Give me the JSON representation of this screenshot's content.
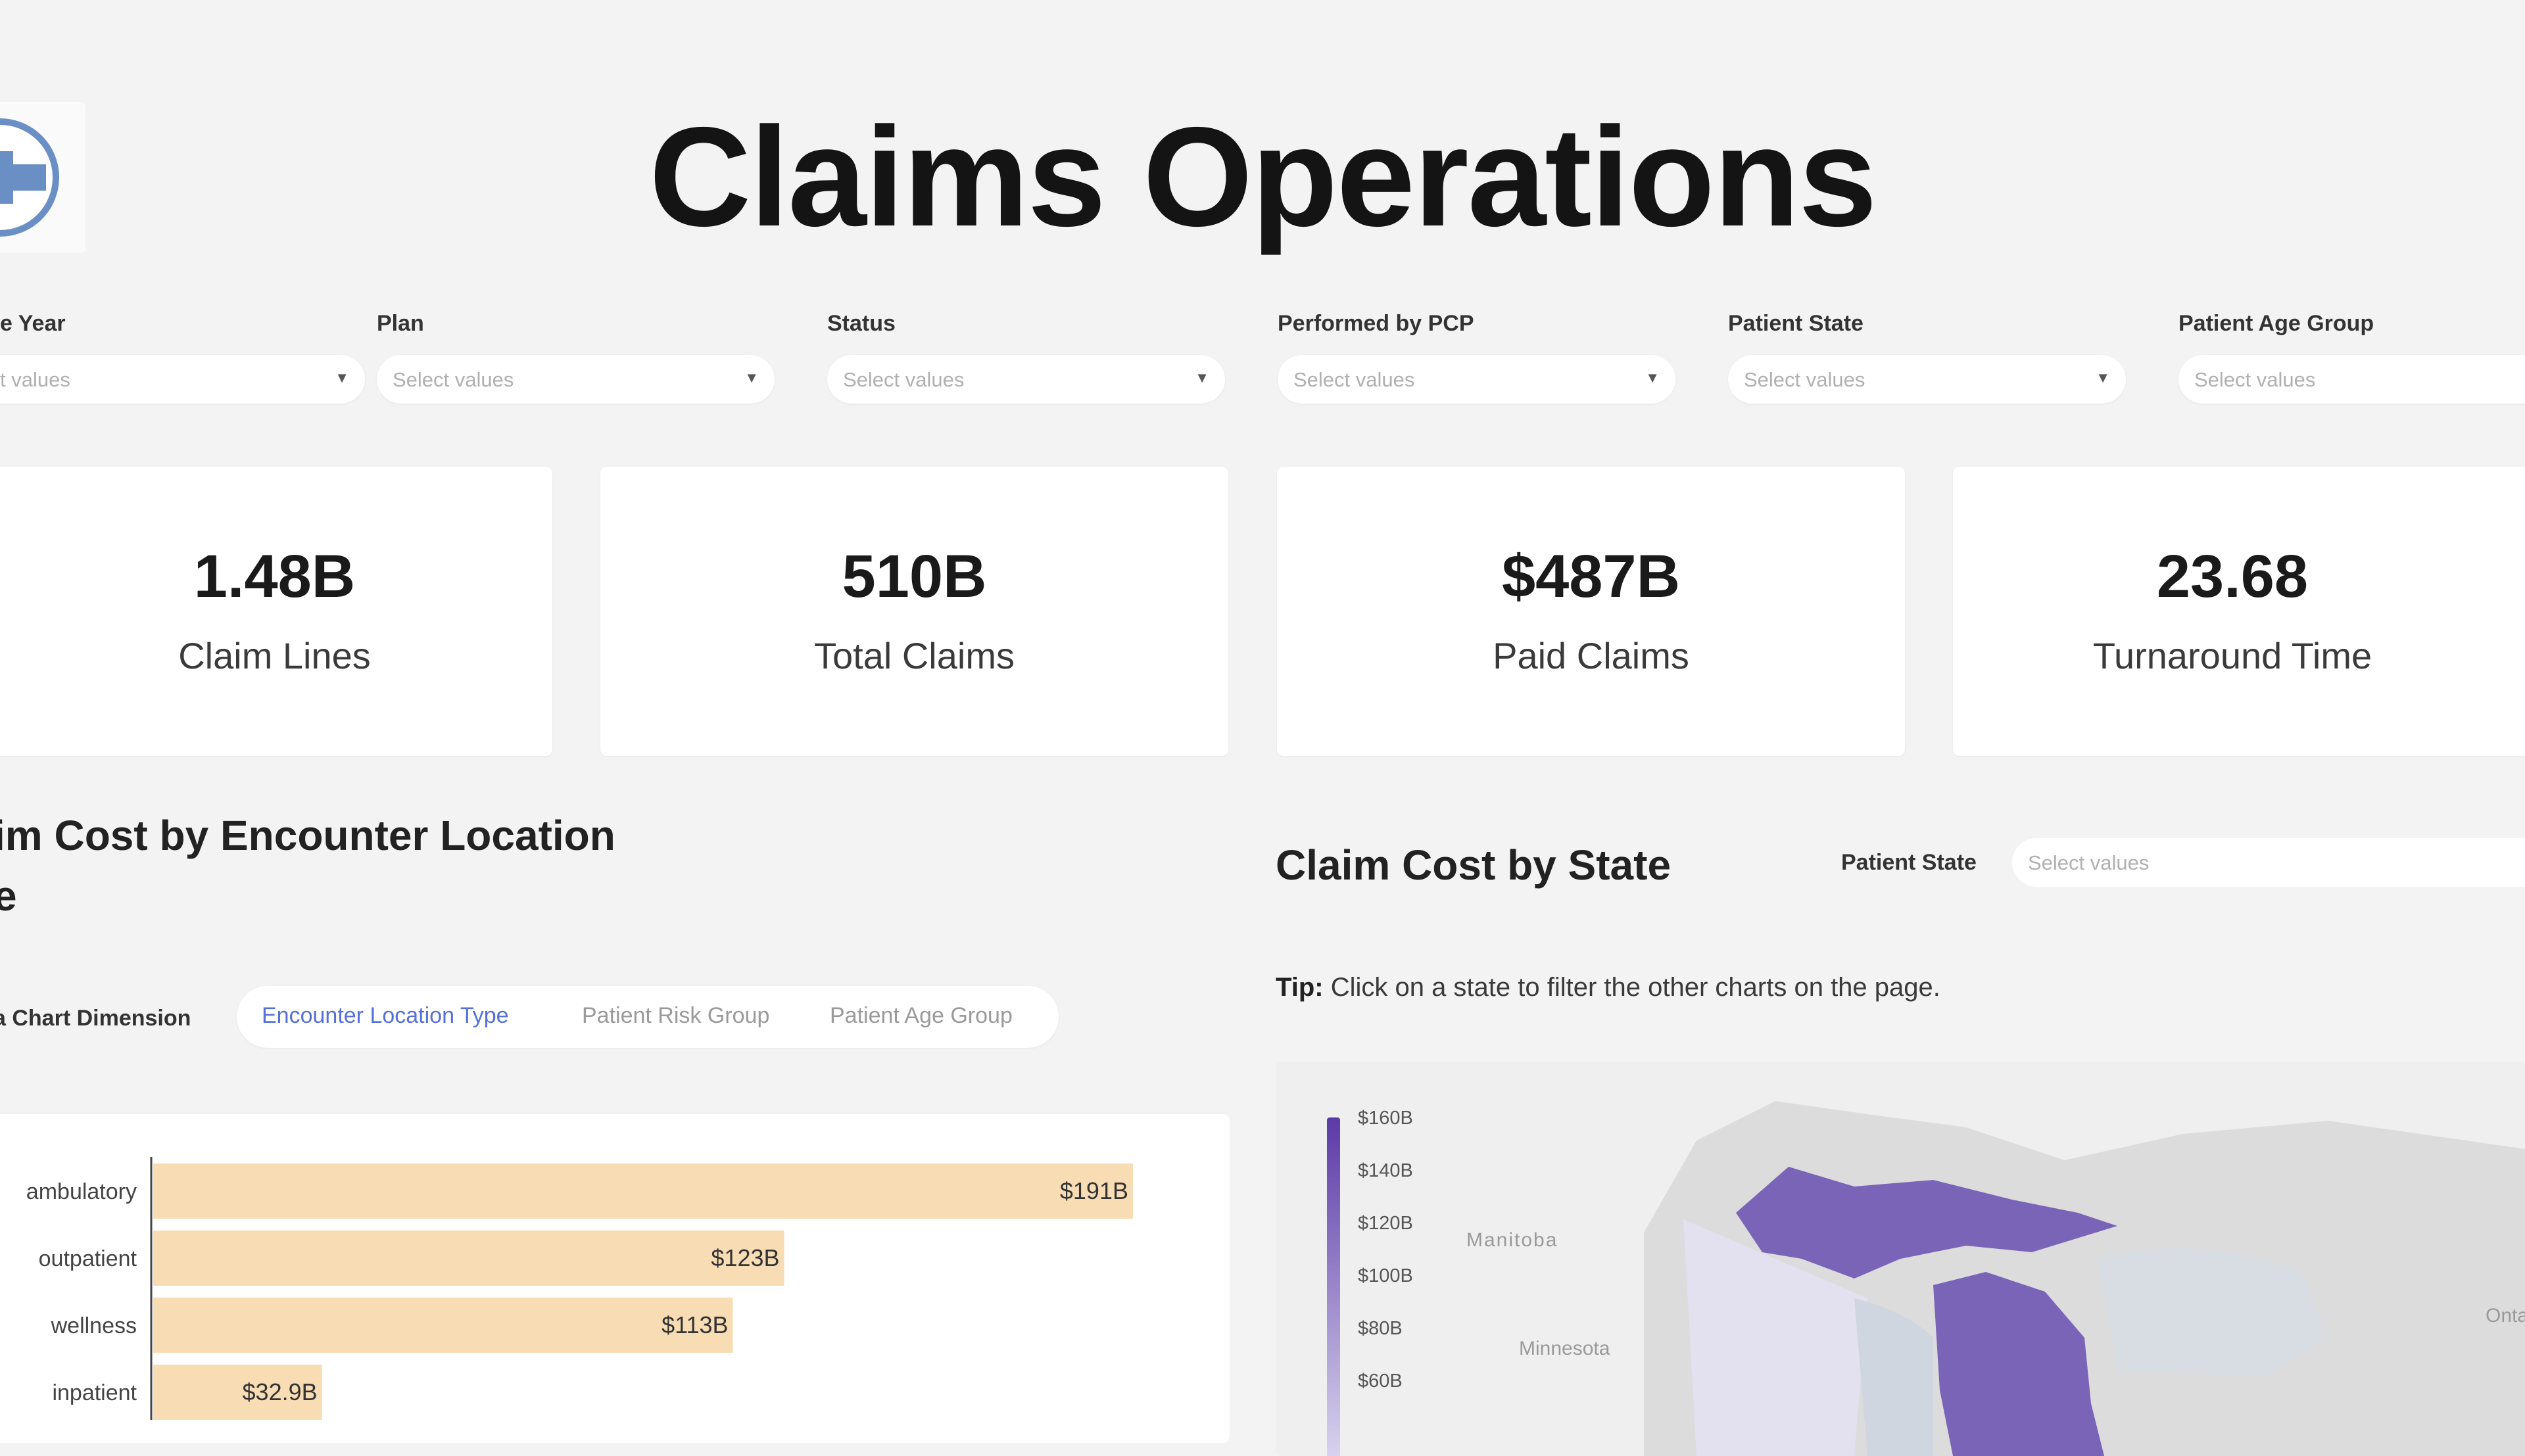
{
  "app": {
    "title": "Claims Operations",
    "logo": "medical-cross-logo"
  },
  "filters": [
    {
      "label": "e Year",
      "placeholder": "t values"
    },
    {
      "label": "Plan",
      "placeholder": "Select values"
    },
    {
      "label": "Status",
      "placeholder": "Select values"
    },
    {
      "label": "Performed by PCP",
      "placeholder": "Select values"
    },
    {
      "label": "Patient State",
      "placeholder": "Select values"
    },
    {
      "label": "Patient Age Group",
      "placeholder": "Select values"
    }
  ],
  "kpis": [
    {
      "value": "1.48B",
      "label": "Claim Lines"
    },
    {
      "value": "510B",
      "label": "Total Claims"
    },
    {
      "value": "$487B",
      "label": "Paid Claims"
    },
    {
      "value": "23.68",
      "label": "Turnaround Time"
    }
  ],
  "left_section": {
    "title_line1": "im Cost by Encounter Location",
    "title_line2": "e",
    "dimension_label": "a Chart Dimension",
    "dimension_options": [
      "Encounter Location Type",
      "Patient Risk Group",
      "Patient Age Group"
    ],
    "active_option": "Encounter Location Type"
  },
  "right_section": {
    "title": "Claim Cost by State",
    "filter_label": "Patient State",
    "filter_placeholder": "Select values",
    "tip_prefix": "Tip:",
    "tip_text": " Click on a state to filter the other charts on the page.",
    "legend_labels": [
      "$160B",
      "$140B",
      "$120B",
      "$100B",
      "$80B",
      "$60B"
    ],
    "map_labels": [
      "Manitoba",
      "Minnesota",
      "Ontario"
    ]
  },
  "colors": {
    "bar": "#f8ddb4",
    "active_option": "#5570d8",
    "map_state": "#7a64b8",
    "map_state_light": "#e3e0ef"
  },
  "chart_data": {
    "type": "bar",
    "orientation": "horizontal",
    "categories": [
      "ambulatory",
      "outpatient",
      "wellness",
      "inpatient"
    ],
    "values": [
      191,
      123,
      113,
      32.9
    ],
    "value_labels": [
      "$191B",
      "$123B",
      "$113B",
      "$32.9B"
    ],
    "unit": "$B",
    "xlim": [
      0,
      191
    ]
  }
}
